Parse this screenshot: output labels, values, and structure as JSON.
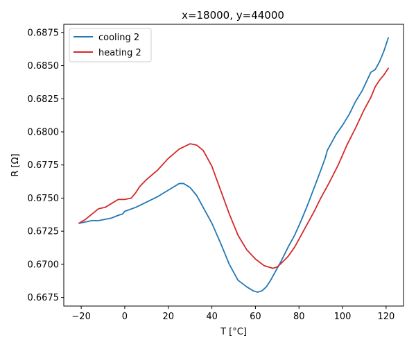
{
  "chart_data": {
    "type": "line",
    "title": "x=18000, y=44000",
    "xlabel": "T [°C]",
    "ylabel": "R [Ω]",
    "xlim": [
      -28,
      128
    ],
    "ylim": [
      0.66685,
      0.68812
    ],
    "xticks": [
      -20,
      0,
      20,
      40,
      60,
      80,
      100,
      120
    ],
    "xtick_labels": [
      "−20",
      "0",
      "20",
      "40",
      "60",
      "80",
      "100",
      "120"
    ],
    "yticks": [
      0.6675,
      0.67,
      0.6725,
      0.675,
      0.6775,
      0.68,
      0.6825,
      0.685,
      0.6875
    ],
    "ytick_labels": [
      "0.6675",
      "0.6700",
      "0.6725",
      "0.6750",
      "0.6775",
      "0.6800",
      "0.6825",
      "0.6850",
      "0.6875"
    ],
    "grid": false,
    "legend_position": "top-left",
    "series": [
      {
        "name": "cooling 2",
        "color": "#1f77b4",
        "x": [
          -21,
          -18,
          -15,
          -12,
          -9,
          -6,
          -3,
          -1,
          0,
          5,
          10,
          15,
          20,
          22,
          25,
          27,
          30,
          33,
          36,
          40,
          44,
          48,
          52,
          56,
          59,
          61,
          63,
          65,
          67,
          70,
          72,
          75,
          78,
          81,
          84,
          87,
          90,
          92,
          93,
          95,
          97,
          100,
          103,
          106,
          109,
          111,
          113,
          115,
          117,
          119,
          120,
          121
        ],
        "y": [
          0.6731,
          0.6732,
          0.6733,
          0.6733,
          0.6734,
          0.6735,
          0.6737,
          0.6738,
          0.674,
          0.6743,
          0.6747,
          0.6751,
          0.6756,
          0.6758,
          0.6761,
          0.6761,
          0.6758,
          0.6752,
          0.6743,
          0.6731,
          0.6716,
          0.67,
          0.6688,
          0.6683,
          0.668,
          0.6679,
          0.668,
          0.6683,
          0.6688,
          0.6697,
          0.6703,
          0.6713,
          0.6722,
          0.6733,
          0.6745,
          0.6758,
          0.6771,
          0.678,
          0.6786,
          0.6792,
          0.6798,
          0.6805,
          0.6813,
          0.6823,
          0.6831,
          0.6838,
          0.6845,
          0.6847,
          0.6853,
          0.6861,
          0.6866,
          0.6871
        ]
      },
      {
        "name": "heating 2",
        "color": "#d62728",
        "x": [
          -21,
          -18,
          -15,
          -12,
          -9,
          -6,
          -3,
          0,
          3,
          5,
          7,
          10,
          15,
          20,
          25,
          30,
          33,
          36,
          40,
          44,
          48,
          52,
          56,
          60,
          64,
          68,
          70,
          72,
          75,
          78,
          81,
          84,
          87,
          90,
          94,
          98,
          102,
          106,
          110,
          113,
          115,
          117,
          119,
          121
        ],
        "y": [
          0.6731,
          0.6734,
          0.6738,
          0.6742,
          0.6743,
          0.6746,
          0.6749,
          0.6749,
          0.675,
          0.6754,
          0.6759,
          0.6764,
          0.6771,
          0.678,
          0.6787,
          0.6791,
          0.679,
          0.6786,
          0.6774,
          0.6756,
          0.6738,
          0.6722,
          0.6711,
          0.6704,
          0.6699,
          0.6697,
          0.6698,
          0.6701,
          0.6706,
          0.6713,
          0.6722,
          0.6731,
          0.674,
          0.675,
          0.6762,
          0.6775,
          0.679,
          0.6803,
          0.6817,
          0.6826,
          0.6834,
          0.6839,
          0.6843,
          0.6848
        ]
      }
    ]
  }
}
